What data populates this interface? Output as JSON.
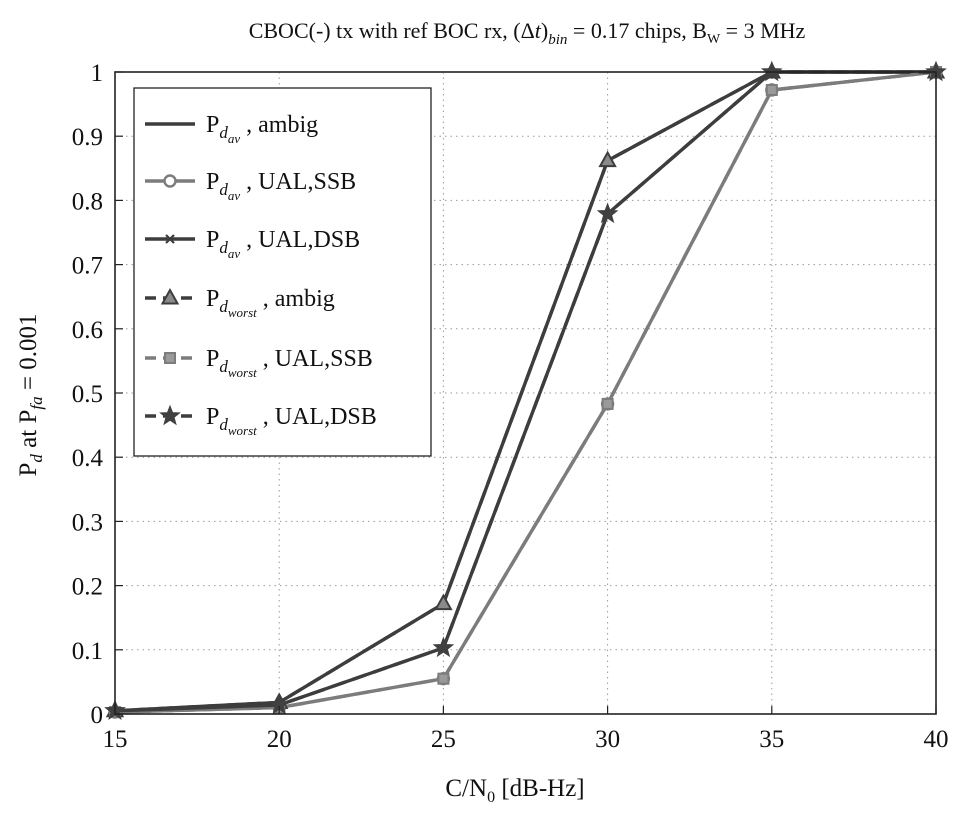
{
  "chart_data": {
    "type": "line",
    "title": {
      "prefix": "CBOC(-) tx with ref BOC rx, (",
      "delta": "Δ",
      "t": "t",
      "close": ")",
      "sub": "bin",
      "middle": " = 0.17 chips, B",
      "bw_sub": "W",
      "suffix": " = 3 MHz"
    },
    "xlabel": {
      "main": "C/N",
      "sub": "0",
      "rest": " [dB-Hz]"
    },
    "ylabel": {
      "p": "P",
      "p_sub": "d",
      "mid": " at  P",
      "fa_sub": "fa",
      "rest": " = 0.001"
    },
    "xlim": [
      15,
      40
    ],
    "ylim": [
      0,
      1
    ],
    "x_ticks": [
      15,
      20,
      25,
      30,
      35,
      40
    ],
    "y_ticks": [
      0,
      0.1,
      0.2,
      0.3,
      0.4,
      0.5,
      0.6,
      0.7,
      0.8,
      0.9,
      1
    ],
    "grid": true,
    "legend_position": "top-left",
    "x": [
      15,
      20,
      25,
      30,
      35,
      40
    ],
    "series": [
      {
        "id": "pdav-ambig",
        "name_main": "P",
        "name_sub": "d",
        "name_subsub": "av",
        "name_rest": " , ambig",
        "values": [
          0.005,
          0.018,
          0.172,
          0.862,
          1.0,
          1.0
        ],
        "color": "#3d3d3d",
        "dash": false,
        "marker": "none",
        "show_markers": false
      },
      {
        "id": "pdav-ual-ssb",
        "name_main": "P",
        "name_sub": "d",
        "name_subsub": "av",
        "name_rest": " , UAL,SSB",
        "values": [
          0.003,
          0.01,
          0.055,
          0.483,
          0.972,
          1.0
        ],
        "color": "#7c7c7c",
        "dash": false,
        "marker": "circle",
        "show_markers": true
      },
      {
        "id": "pdav-ual-dsb",
        "name_main": "P",
        "name_sub": "d",
        "name_subsub": "av",
        "name_rest": " , UAL,DSB",
        "values": [
          0.005,
          0.014,
          0.103,
          0.779,
          1.0,
          1.0
        ],
        "color": "#3d3d3d",
        "dash": false,
        "marker": "x",
        "show_markers": false
      },
      {
        "id": "pdworst-ambig",
        "name_main": "P",
        "name_sub": "d",
        "name_subsub": "worst",
        "name_rest": " , ambig",
        "values": [
          0.005,
          0.018,
          0.172,
          0.862,
          1.0,
          1.0
        ],
        "color": "#3d3d3d",
        "dash": true,
        "marker": "triangle",
        "show_markers": true
      },
      {
        "id": "pdworst-ual-ssb",
        "name_main": "P",
        "name_sub": "d",
        "name_subsub": "worst",
        "name_rest": " , UAL,SSB",
        "values": [
          0.003,
          0.01,
          0.055,
          0.483,
          0.972,
          1.0
        ],
        "color": "#7c7c7c",
        "dash": true,
        "marker": "square",
        "show_markers": true
      },
      {
        "id": "pdworst-ual-dsb",
        "name_main": "P",
        "name_sub": "d",
        "name_subsub": "worst",
        "name_rest": " , UAL,DSB",
        "values": [
          0.005,
          0.014,
          0.103,
          0.779,
          1.0,
          1.0
        ],
        "color": "#3d3d3d",
        "dash": true,
        "marker": "star",
        "show_markers": true
      }
    ]
  }
}
